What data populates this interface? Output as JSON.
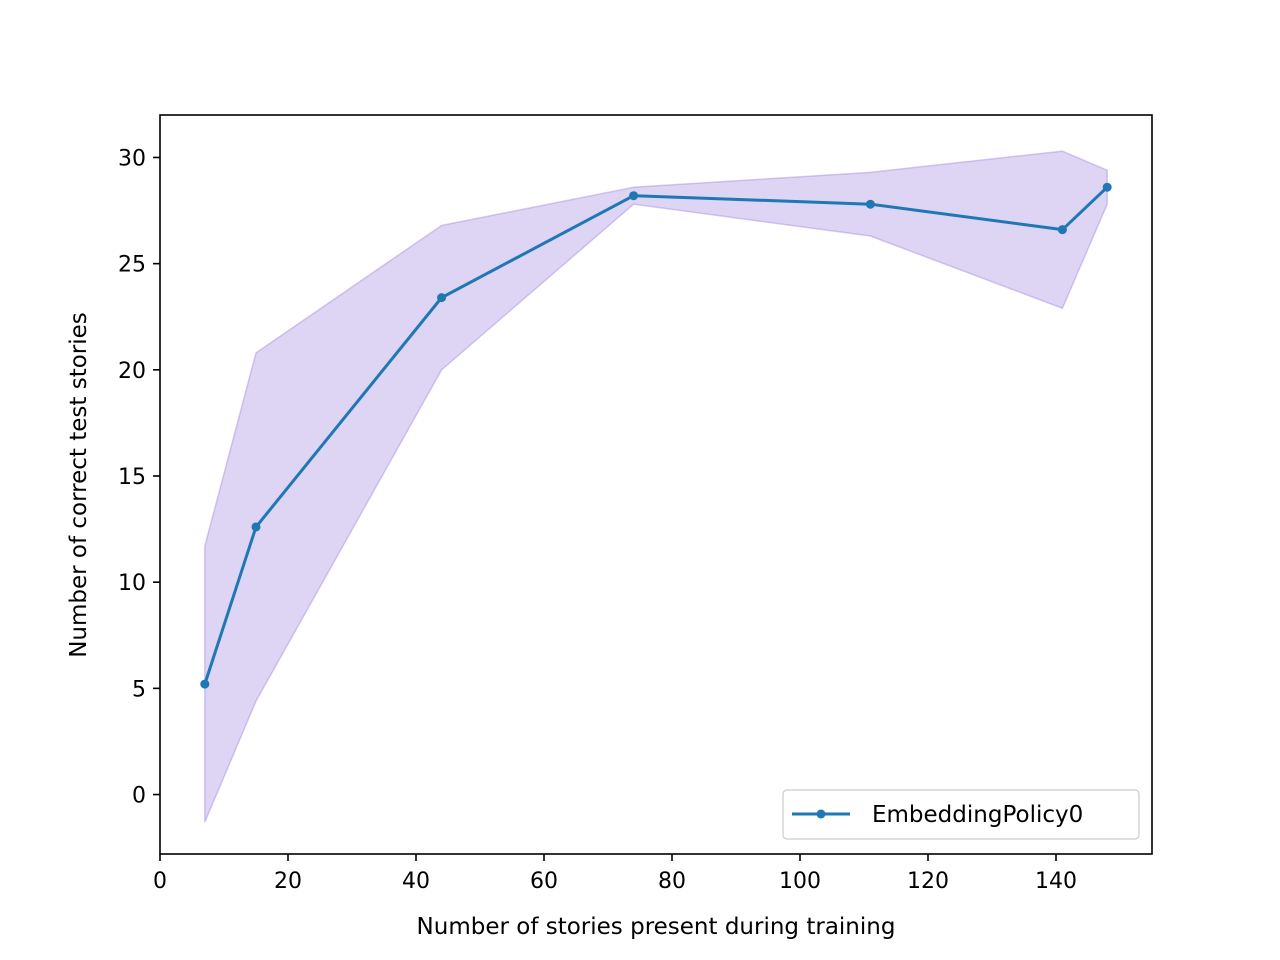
{
  "chart_data": {
    "type": "line",
    "title": "",
    "xlabel": "Number of stories present during training",
    "ylabel": "Number of correct test stories",
    "xlim": [
      0,
      155
    ],
    "ylim": [
      -2.8,
      32
    ],
    "xticks": [
      0,
      20,
      40,
      60,
      80,
      100,
      120,
      140
    ],
    "yticks": [
      0,
      5,
      10,
      15,
      20,
      25,
      30
    ],
    "grid": false,
    "legend_position": "lower-right",
    "series": [
      {
        "name": "EmbeddingPolicy0",
        "color": "#1f77b4",
        "x": [
          7,
          15,
          44,
          74,
          111,
          141,
          148
        ],
        "y": [
          5.2,
          12.6,
          23.4,
          28.2,
          27.8,
          26.6,
          28.6
        ],
        "band_upper": [
          11.7,
          20.8,
          26.8,
          28.6,
          29.3,
          30.3,
          29.4
        ],
        "band_lower": [
          -1.3,
          4.4,
          20.0,
          27.8,
          26.3,
          22.9,
          27.8
        ],
        "band_color": "#9370db"
      }
    ]
  }
}
